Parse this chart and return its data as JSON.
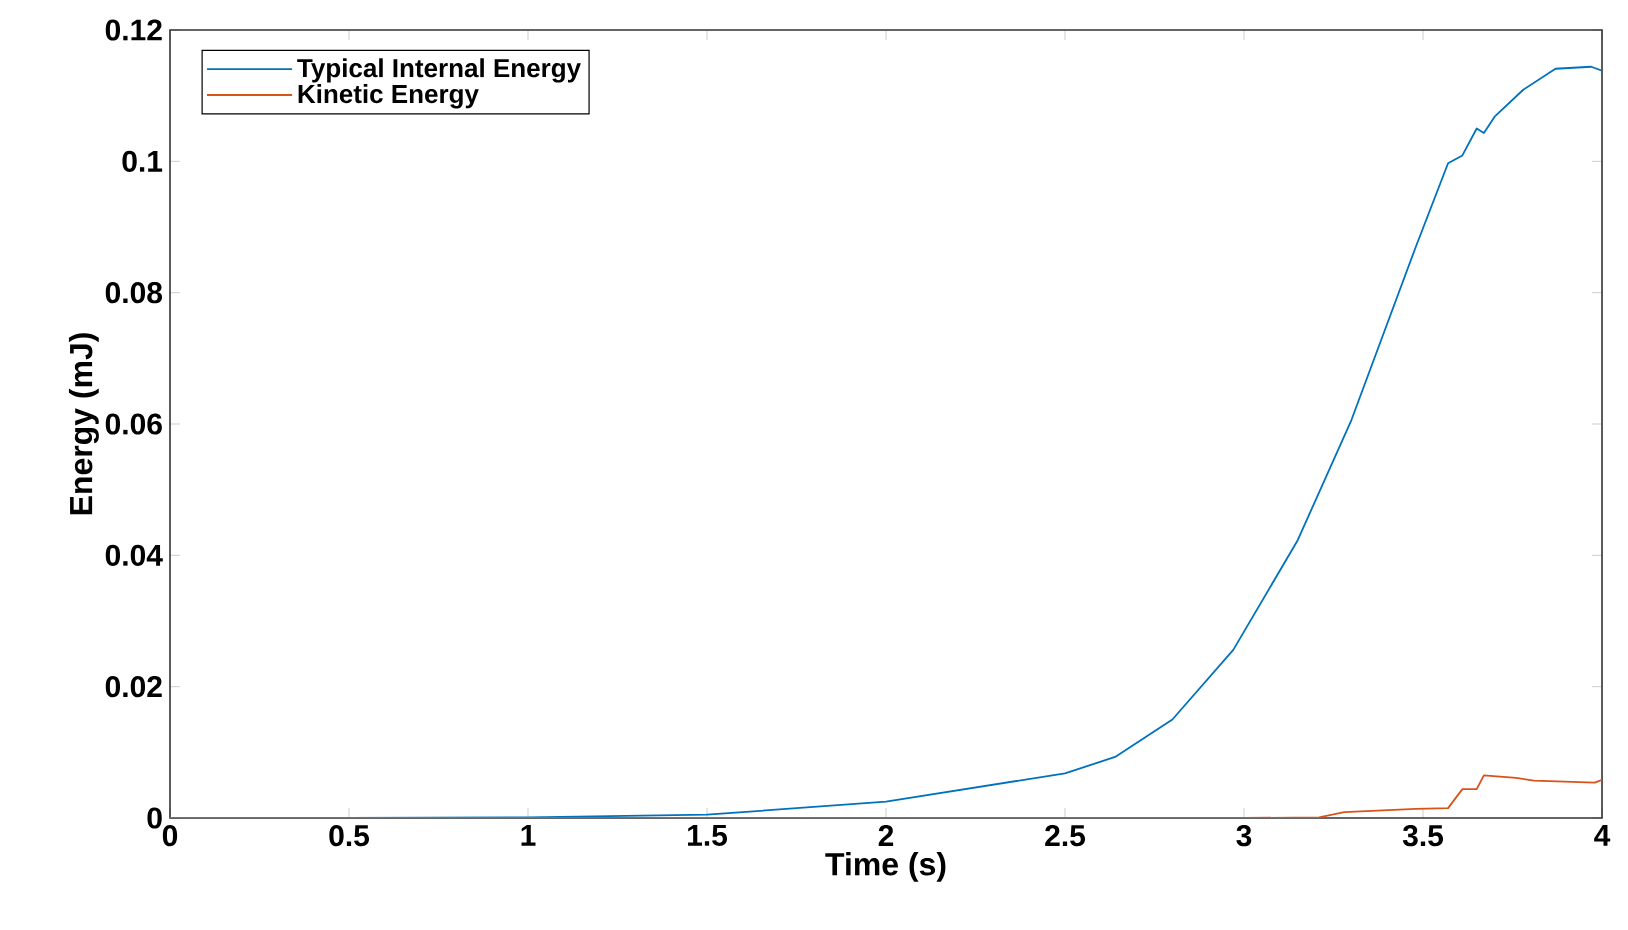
{
  "chart_data": {
    "type": "line",
    "xlabel": "Time (s)",
    "ylabel": "Energy (mJ)",
    "xlim": [
      0,
      4
    ],
    "ylim": [
      0,
      0.12
    ],
    "xticks": [
      0,
      0.5,
      1,
      1.5,
      2,
      2.5,
      3,
      3.5,
      4
    ],
    "yticks": [
      0,
      0.02,
      0.04,
      0.06,
      0.08,
      0.1,
      0.12
    ],
    "grid": false,
    "legend": "top left",
    "marker": "none",
    "line_style": "solid",
    "series": [
      {
        "name": "Typical Internal Energy",
        "color": "#0072bd",
        "x": [
          0,
          0.5,
          1,
          1.5,
          2,
          2.5,
          2.64,
          2.8,
          2.97,
          3.15,
          3.3,
          3.39,
          3.48,
          3.57,
          3.61,
          3.65,
          3.67,
          3.7,
          3.78,
          3.87,
          3.97,
          4.0
        ],
        "values": [
          0,
          0,
          0.0001,
          0.0005,
          0.0025,
          0.0068,
          0.0093,
          0.015,
          0.0256,
          0.0423,
          0.0606,
          0.0738,
          0.087,
          0.0997,
          0.1009,
          0.105,
          0.1043,
          0.1068,
          0.1109,
          0.1141,
          0.1144,
          0.1138
        ]
      },
      {
        "name": "Kinetic Energy",
        "color": "#d95319",
        "x": [
          0,
          1,
          2,
          2.715,
          3.0,
          3.21,
          3.28,
          3.48,
          3.57,
          3.61,
          3.65,
          3.67,
          3.76,
          3.81,
          3.98,
          4.0
        ],
        "values": [
          0,
          0,
          0,
          0,
          0,
          0.0001,
          0.0009,
          0.0014,
          0.0015,
          0.0044,
          0.0044,
          0.0065,
          0.0061,
          0.0057,
          0.0054,
          0.0058
        ]
      }
    ]
  }
}
